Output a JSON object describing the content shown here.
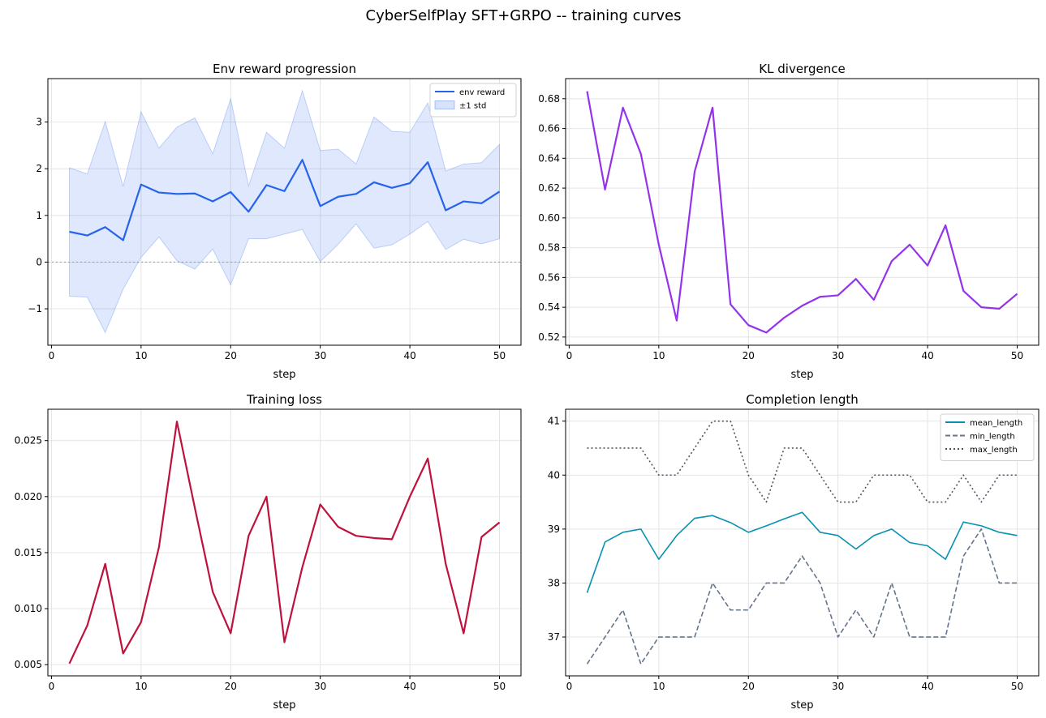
{
  "figure": {
    "title": "CyberSelfPlay SFT+GRPO -- training curves"
  },
  "chart_data": [
    {
      "type": "line",
      "title": "Env reward progression",
      "xlabel": "step",
      "ylabel": "",
      "xlim": [
        -0.4,
        52.4
      ],
      "ylim": [
        -1.78,
        3.93
      ],
      "xticks": [
        0,
        10,
        20,
        30,
        40,
        50
      ],
      "yticks": [
        -1,
        0,
        1,
        2,
        3
      ],
      "ytick_labels": [
        "−1",
        "0",
        "1",
        "2",
        "3"
      ],
      "grid": true,
      "legend_position": "upper right",
      "reference_line": {
        "y": 0,
        "style": "dotted",
        "color": "#9e9e9e"
      },
      "x": [
        2,
        4,
        6,
        8,
        10,
        12,
        14,
        16,
        18,
        20,
        22,
        24,
        26,
        28,
        30,
        32,
        34,
        36,
        38,
        40,
        42,
        44,
        46,
        48,
        50
      ],
      "series": [
        {
          "name": "env reward",
          "color": "#2563eb",
          "style": "solid",
          "values": [
            0.65,
            0.57,
            0.75,
            0.47,
            1.66,
            1.49,
            1.46,
            1.47,
            1.3,
            1.5,
            1.08,
            1.65,
            1.52,
            2.19,
            1.2,
            1.4,
            1.46,
            1.71,
            1.59,
            1.69,
            2.14,
            1.11,
            1.3,
            1.26,
            1.51
          ]
        }
      ],
      "band": {
        "name": "±1 std",
        "color": "#2563eb",
        "opacity": 0.15,
        "upper": [
          2.02,
          1.89,
          3.01,
          1.62,
          3.22,
          2.44,
          2.89,
          3.09,
          2.32,
          3.5,
          1.63,
          2.78,
          2.44,
          3.67,
          2.39,
          2.42,
          2.1,
          3.11,
          2.8,
          2.78,
          3.41,
          1.95,
          2.1,
          2.13,
          2.52
        ],
        "lower": [
          -0.73,
          -0.75,
          -1.51,
          -0.58,
          0.1,
          0.54,
          0.03,
          -0.15,
          0.28,
          -0.49,
          0.5,
          0.5,
          0.6,
          0.7,
          0.01,
          0.38,
          0.82,
          0.3,
          0.37,
          0.6,
          0.87,
          0.27,
          0.49,
          0.39,
          0.5
        ]
      }
    },
    {
      "type": "line",
      "title": "KL divergence",
      "xlabel": "step",
      "ylabel": "",
      "xlim": [
        -0.4,
        52.4
      ],
      "ylim": [
        0.5145,
        0.6935
      ],
      "xticks": [
        0,
        10,
        20,
        30,
        40,
        50
      ],
      "yticks": [
        0.52,
        0.54,
        0.56,
        0.58,
        0.6,
        0.62,
        0.64,
        0.66,
        0.68
      ],
      "ytick_labels": [
        "0.52",
        "0.54",
        "0.56",
        "0.58",
        "0.60",
        "0.62",
        "0.64",
        "0.66",
        "0.68"
      ],
      "grid": true,
      "x": [
        2,
        4,
        6,
        8,
        10,
        12,
        14,
        16,
        18,
        20,
        22,
        24,
        26,
        28,
        30,
        32,
        34,
        36,
        38,
        40,
        42,
        44,
        46,
        48,
        50
      ],
      "series": [
        {
          "color": "#9333ea",
          "style": "solid",
          "values": [
            0.685,
            0.619,
            0.674,
            0.643,
            0.582,
            0.531,
            0.631,
            0.674,
            0.542,
            0.528,
            0.523,
            0.533,
            0.541,
            0.547,
            0.548,
            0.559,
            0.545,
            0.571,
            0.582,
            0.568,
            0.595,
            0.551,
            0.54,
            0.539,
            0.549
          ]
        }
      ]
    },
    {
      "type": "line",
      "title": "Training loss",
      "xlabel": "step",
      "ylabel": "",
      "xlim": [
        -0.4,
        52.4
      ],
      "ylim": [
        0.004,
        0.0278
      ],
      "xticks": [
        0,
        10,
        20,
        30,
        40,
        50
      ],
      "yticks": [
        0.005,
        0.01,
        0.015,
        0.02,
        0.025
      ],
      "ytick_labels": [
        "0.005",
        "0.010",
        "0.015",
        "0.020",
        "0.025"
      ],
      "grid": true,
      "x": [
        2,
        4,
        6,
        8,
        10,
        12,
        14,
        16,
        18,
        20,
        22,
        24,
        26,
        28,
        30,
        32,
        34,
        36,
        38,
        40,
        42,
        44,
        46,
        48,
        50
      ],
      "series": [
        {
          "color": "#be123c",
          "style": "solid",
          "values": [
            0.0051,
            0.0085,
            0.014,
            0.006,
            0.0088,
            0.0155,
            0.0267,
            0.019,
            0.0115,
            0.0078,
            0.0165,
            0.02,
            0.007,
            0.0137,
            0.0193,
            0.0173,
            0.0165,
            0.0163,
            0.0162,
            0.02,
            0.0234,
            0.014,
            0.0078,
            0.0164,
            0.0177
          ]
        }
      ]
    },
    {
      "type": "line",
      "title": "Completion length",
      "xlabel": "step",
      "ylabel": "",
      "xlim": [
        -0.4,
        52.4
      ],
      "ylim": [
        36.28,
        41.22
      ],
      "xticks": [
        0,
        10,
        20,
        30,
        40,
        50
      ],
      "yticks": [
        37,
        38,
        39,
        40,
        41
      ],
      "ytick_labels": [
        "37",
        "38",
        "39",
        "40",
        "41"
      ],
      "grid": true,
      "legend_position": "upper right",
      "x": [
        2,
        4,
        6,
        8,
        10,
        12,
        14,
        16,
        18,
        20,
        22,
        24,
        26,
        28,
        30,
        32,
        34,
        36,
        38,
        40,
        42,
        44,
        46,
        48,
        50
      ],
      "series": [
        {
          "name": "mean_length",
          "color": "#0891b2",
          "style": "solid",
          "values": [
            37.82,
            38.76,
            38.94,
            39.0,
            38.44,
            38.88,
            39.2,
            39.25,
            39.12,
            38.94,
            39.06,
            39.19,
            39.31,
            38.94,
            38.88,
            38.63,
            38.88,
            39.0,
            38.75,
            38.69,
            38.44,
            39.13,
            39.06,
            38.94,
            38.88
          ]
        },
        {
          "name": "min_length",
          "color": "#64748b",
          "style": "dashed",
          "values": [
            36.5,
            37.0,
            37.5,
            36.5,
            37.0,
            37.0,
            37.0,
            38.0,
            37.5,
            37.5,
            38.0,
            38.0,
            38.5,
            38.0,
            37.0,
            37.5,
            37.0,
            38.0,
            37.0,
            37.0,
            37.0,
            38.5,
            39.0,
            38.0,
            38.0
          ]
        },
        {
          "name": "max_length",
          "color": "#4b5563",
          "style": "dotted",
          "values": [
            40.5,
            40.5,
            40.5,
            40.5,
            40.0,
            40.0,
            40.5,
            41.0,
            41.0,
            40.0,
            39.5,
            40.5,
            40.5,
            40.0,
            39.5,
            39.5,
            40.0,
            40.0,
            40.0,
            39.5,
            39.5,
            40.0,
            39.5,
            40.0,
            40.0
          ]
        }
      ]
    }
  ]
}
